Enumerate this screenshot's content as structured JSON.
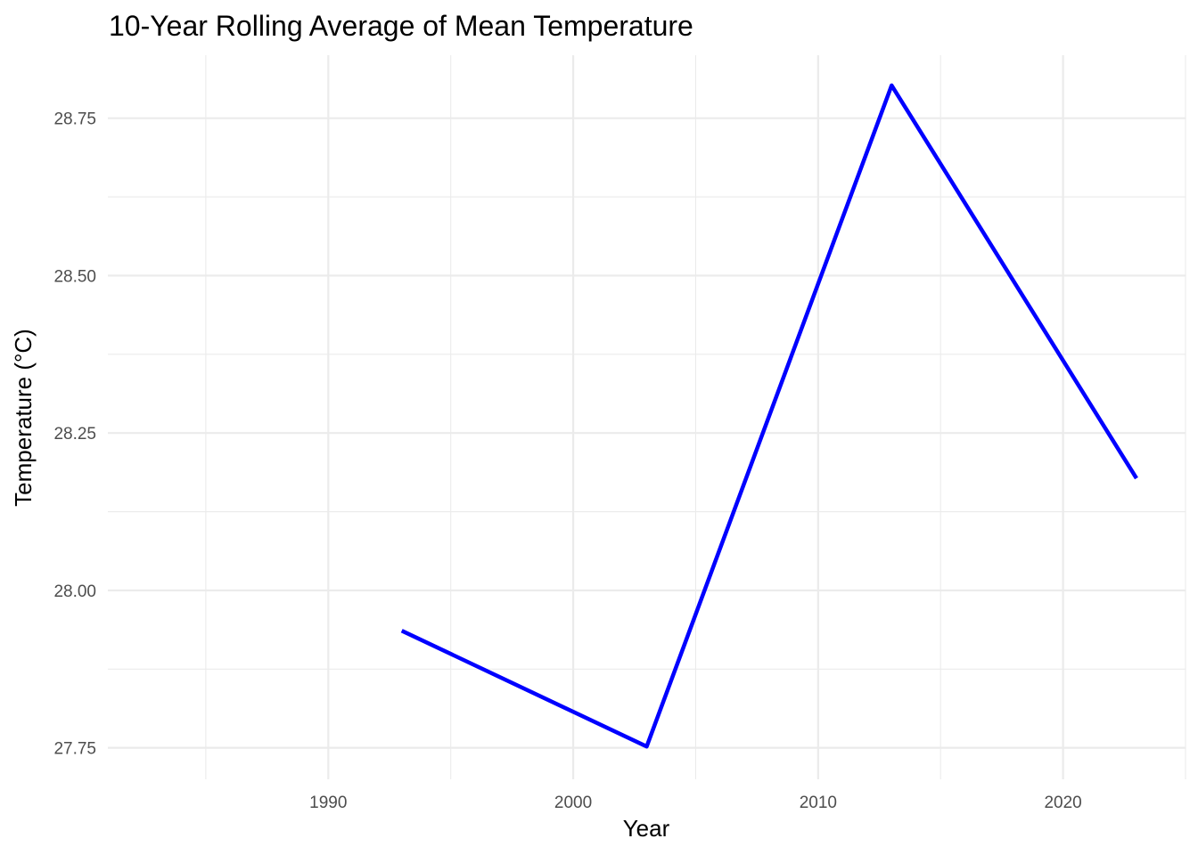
{
  "chart_data": {
    "type": "line",
    "title": "10-Year Rolling Average of Mean Temperature",
    "xlabel": "Year",
    "ylabel": "Temperature (°C)",
    "xlim": [
      1981,
      2025
    ],
    "ylim": [
      27.7,
      28.85
    ],
    "x_ticks": [
      1990,
      2000,
      2010,
      2020
    ],
    "x_tick_labels": [
      "1990",
      "2000",
      "2010",
      "2020"
    ],
    "y_ticks": [
      27.75,
      28.0,
      28.25,
      28.5,
      28.75
    ],
    "y_tick_labels": [
      "27.75",
      "28.00",
      "28.25",
      "28.50",
      "28.75"
    ],
    "grid": true,
    "series": [
      {
        "color": "#0000ff",
        "x": [
          1993,
          2003,
          2013,
          2023
        ],
        "y": [
          27.936,
          27.752,
          28.802,
          28.178
        ]
      }
    ]
  }
}
